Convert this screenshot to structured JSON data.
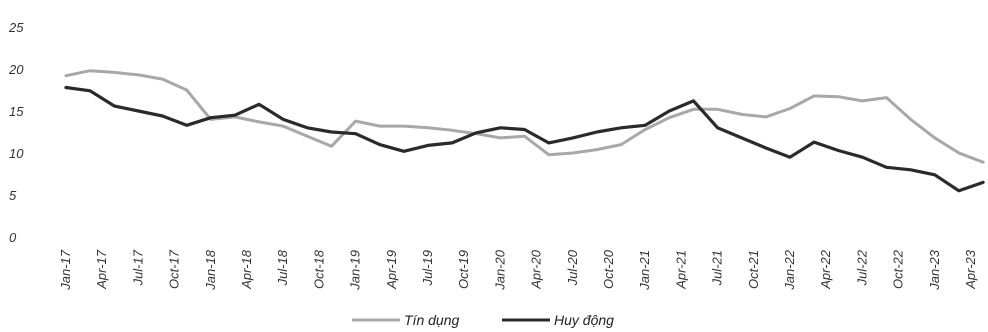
{
  "chart_data": {
    "type": "line",
    "title": "",
    "xlabel": "",
    "ylabel": "",
    "ylim": [
      0,
      25
    ],
    "yticks": [
      0,
      5,
      10,
      15,
      20,
      25
    ],
    "grid": false,
    "legend": "bottom-center",
    "x_tick_labels": [
      "Jan-17",
      "Apr-17",
      "Jul-17",
      "Oct-17",
      "Jan-18",
      "Apr-18",
      "Jul-18",
      "Oct-18",
      "Jan-19",
      "Apr-19",
      "Jul-19",
      "Oct-19",
      "Jan-20",
      "Apr-20",
      "Jul-20",
      "Oct-20",
      "Jan-21",
      "Apr-21",
      "Jul-21",
      "Oct-21",
      "Jan-22",
      "Apr-22",
      "Jul-22",
      "Oct-22",
      "Jan-23",
      "Apr-23"
    ],
    "x": [
      "Jan-17",
      "Mar-17",
      "May-17",
      "Jul-17",
      "Sep-17",
      "Nov-17",
      "Jan-18",
      "Mar-18",
      "May-18",
      "Jul-18",
      "Sep-18",
      "Nov-18",
      "Jan-19",
      "Mar-19",
      "May-19",
      "Jul-19",
      "Sep-19",
      "Nov-19",
      "Jan-20",
      "Mar-20",
      "May-20",
      "Jul-20",
      "Sep-20",
      "Nov-20",
      "Jan-21",
      "Mar-21",
      "May-21",
      "Jul-21",
      "Sep-21",
      "Nov-21",
      "Jan-22",
      "Mar-22",
      "May-22",
      "Jul-22",
      "Sep-22",
      "Nov-22",
      "Jan-23",
      "Mar-23",
      "May-23"
    ],
    "series": [
      {
        "name": "Tín dụng",
        "color": "#a8a8a8",
        "values": [
          19.2,
          19.8,
          19.6,
          19.3,
          18.8,
          17.5,
          14.0,
          14.3,
          13.7,
          13.2,
          12.0,
          10.8,
          13.8,
          13.2,
          13.2,
          13.0,
          12.7,
          12.3,
          11.8,
          12.0,
          9.8,
          10.0,
          10.4,
          11.0,
          12.8,
          14.2,
          15.2,
          15.2,
          14.6,
          14.3,
          15.3,
          16.8,
          16.7,
          16.2,
          16.6,
          14.0,
          11.8,
          10.0,
          8.9
        ]
      },
      {
        "name": "Huy động",
        "color": "#2a2a2a",
        "values": [
          17.8,
          17.4,
          15.6,
          15.0,
          14.4,
          13.3,
          14.2,
          14.5,
          15.8,
          14.0,
          13.0,
          12.5,
          12.3,
          11.0,
          10.2,
          10.9,
          11.2,
          12.4,
          13.0,
          12.8,
          11.2,
          11.8,
          12.5,
          13.0,
          13.3,
          15.0,
          16.2,
          13.0,
          11.8,
          10.6,
          9.5,
          11.3,
          10.3,
          9.5,
          8.3,
          8.0,
          7.4,
          5.5,
          6.5
        ]
      }
    ]
  }
}
